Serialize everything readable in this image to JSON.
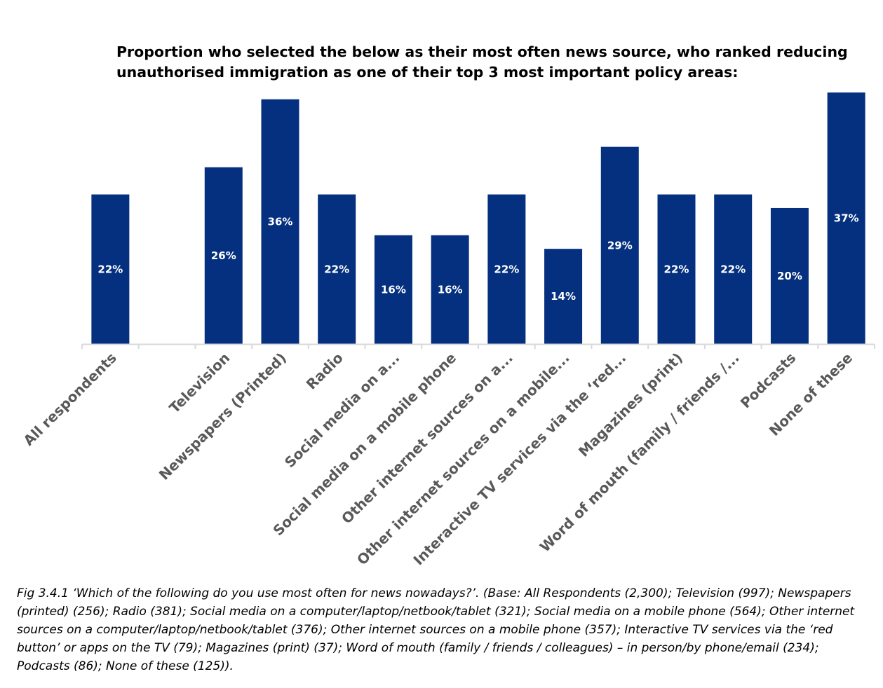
{
  "chart_data": {
    "type": "bar",
    "title": "Proportion who selected the below as their most often news source, who ranked reducing unauthorised immigration as one of their top 3 most important policy areas:",
    "categories": [
      "All respondents",
      "",
      "Television",
      "Newspapers (Printed)",
      "Radio",
      "Social media on a...",
      "Social media on a mobile phone",
      "Other internet sources on a...",
      "Other internet sources on a mobile...",
      "Interactive TV services via the ‘red...",
      "Magazines (print)",
      "Word of mouth (family / friends /...",
      "Podcasts",
      "None of these"
    ],
    "values": [
      22,
      null,
      26,
      36,
      22,
      16,
      16,
      22,
      14,
      29,
      22,
      22,
      20,
      37
    ],
    "data_labels": [
      "22%",
      "",
      "26%",
      "36%",
      "22%",
      "16%",
      "16%",
      "22%",
      "14%",
      "29%",
      "22%",
      "22%",
      "20%",
      "37%"
    ],
    "ylim": [
      0,
      37
    ],
    "grid": false,
    "bar_color": "#04307f",
    "axis_color": "#d9d9d9",
    "label_color": "#595959"
  },
  "caption": {
    "fig_label": "Fig 3.4.1",
    "text": " ‘Which of the following do you use most often for news nowadays?’. (Base: All Respondents (2,300); Television (997); Newspapers (printed) (256); Radio (381); Social media on a computer/laptop/netbook/tablet (321); Social media on a mobile phone (564); Other internet sources on a computer/laptop/netbook/tablet (376); Other internet sources on a mobile phone (357); Interactive TV services via the ‘red button’ or apps on the TV (79); Magazines (print) (37); Word of mouth (family / friends / colleagues) – in person/by phone/email (234); Podcasts (86); None of these (125))."
  }
}
